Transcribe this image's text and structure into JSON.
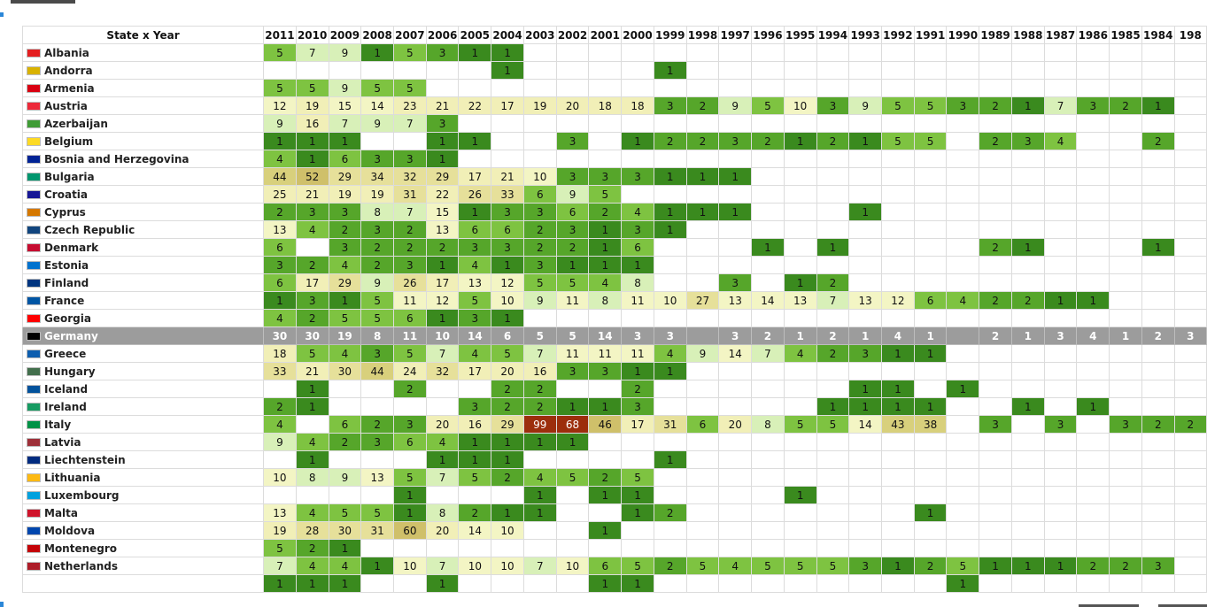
{
  "table": {
    "corner_label": "State x Year",
    "years": [
      "2011",
      "2010",
      "2009",
      "2008",
      "2007",
      "2006",
      "2005",
      "2004",
      "2003",
      "2002",
      "2001",
      "2000",
      "1999",
      "1998",
      "1997",
      "1996",
      "1995",
      "1994",
      "1993",
      "1992",
      "1991",
      "1990",
      "1989",
      "1988",
      "1987",
      "1986",
      "1985",
      "1984",
      "198"
    ],
    "highlight_row": "Germany",
    "rows": [
      {
        "name": "Albania",
        "flag_color": "#e41e20",
        "values": [
          5,
          7,
          9,
          1,
          5,
          3,
          1,
          1,
          null,
          null,
          null,
          null,
          null,
          null,
          null,
          null,
          null,
          null,
          null,
          null,
          null,
          null,
          null,
          null,
          null,
          null,
          null,
          null,
          null
        ]
      },
      {
        "name": "Andorra",
        "flag_color": "#d9b200",
        "values": [
          null,
          null,
          null,
          null,
          null,
          null,
          null,
          1,
          null,
          null,
          null,
          null,
          1,
          null,
          null,
          null,
          null,
          null,
          null,
          null,
          null,
          null,
          null,
          null,
          null,
          null,
          null,
          null,
          null
        ]
      },
      {
        "name": "Armenia",
        "flag_color": "#d90012",
        "values": [
          5,
          5,
          9,
          5,
          5,
          null,
          null,
          null,
          null,
          null,
          null,
          null,
          null,
          null,
          null,
          null,
          null,
          null,
          null,
          null,
          null,
          null,
          null,
          null,
          null,
          null,
          null,
          null,
          null
        ]
      },
      {
        "name": "Austria",
        "flag_color": "#ed2939",
        "values": [
          12,
          19,
          15,
          14,
          23,
          21,
          22,
          17,
          19,
          20,
          18,
          18,
          3,
          2,
          9,
          5,
          10,
          3,
          9,
          5,
          5,
          3,
          2,
          1,
          7,
          3,
          2,
          1,
          null
        ]
      },
      {
        "name": "Azerbaijan",
        "flag_color": "#3f9c35",
        "values": [
          9,
          16,
          7,
          9,
          7,
          3,
          null,
          null,
          null,
          null,
          null,
          null,
          null,
          null,
          null,
          null,
          null,
          null,
          null,
          null,
          null,
          null,
          null,
          null,
          null,
          null,
          null,
          null,
          null
        ]
      },
      {
        "name": "Belgium",
        "flag_color": "#fdda24",
        "values": [
          1,
          1,
          1,
          null,
          null,
          1,
          1,
          null,
          null,
          3,
          null,
          1,
          2,
          2,
          3,
          2,
          1,
          2,
          1,
          5,
          5,
          null,
          2,
          3,
          4,
          null,
          null,
          2,
          null
        ]
      },
      {
        "name": "Bosnia and Herzegovina",
        "flag_color": "#002395",
        "values": [
          4,
          1,
          6,
          3,
          3,
          1,
          null,
          null,
          null,
          null,
          null,
          null,
          null,
          null,
          null,
          null,
          null,
          null,
          null,
          null,
          null,
          null,
          null,
          null,
          null,
          null,
          null,
          null,
          null
        ]
      },
      {
        "name": "Bulgaria",
        "flag_color": "#00966e",
        "values": [
          44,
          52,
          29,
          34,
          32,
          29,
          17,
          21,
          10,
          3,
          3,
          3,
          1,
          1,
          1,
          null,
          null,
          null,
          null,
          null,
          null,
          null,
          null,
          null,
          null,
          null,
          null,
          null,
          null
        ]
      },
      {
        "name": "Croatia",
        "flag_color": "#171796",
        "values": [
          25,
          21,
          19,
          19,
          31,
          22,
          26,
          33,
          6,
          9,
          5,
          null,
          null,
          null,
          null,
          null,
          null,
          null,
          null,
          null,
          null,
          null,
          null,
          null,
          null,
          null,
          null,
          null,
          null
        ]
      },
      {
        "name": "Cyprus",
        "flag_color": "#d57800",
        "values": [
          2,
          3,
          3,
          8,
          7,
          15,
          1,
          3,
          3,
          6,
          2,
          4,
          1,
          1,
          1,
          null,
          null,
          null,
          1,
          null,
          null,
          null,
          null,
          null,
          null,
          null,
          null,
          null,
          null
        ]
      },
      {
        "name": "Czech Republic",
        "flag_color": "#11457e",
        "values": [
          13,
          4,
          2,
          3,
          2,
          13,
          6,
          6,
          2,
          3,
          1,
          3,
          1,
          null,
          null,
          null,
          null,
          null,
          null,
          null,
          null,
          null,
          null,
          null,
          null,
          null,
          null,
          null,
          null
        ]
      },
      {
        "name": "Denmark",
        "flag_color": "#c60c30",
        "values": [
          6,
          null,
          3,
          2,
          2,
          2,
          3,
          3,
          2,
          2,
          1,
          6,
          null,
          null,
          null,
          1,
          null,
          1,
          null,
          null,
          null,
          null,
          2,
          1,
          null,
          null,
          null,
          1,
          null
        ]
      },
      {
        "name": "Estonia",
        "flag_color": "#0072ce",
        "values": [
          3,
          2,
          4,
          2,
          3,
          1,
          4,
          1,
          3,
          1,
          1,
          1,
          null,
          null,
          null,
          null,
          null,
          null,
          null,
          null,
          null,
          null,
          null,
          null,
          null,
          null,
          null,
          null,
          null
        ]
      },
      {
        "name": "Finland",
        "flag_color": "#003580",
        "values": [
          6,
          17,
          29,
          9,
          26,
          17,
          13,
          12,
          5,
          5,
          4,
          8,
          null,
          null,
          3,
          null,
          1,
          2,
          null,
          null,
          null,
          null,
          null,
          null,
          null,
          null,
          null,
          null,
          null
        ]
      },
      {
        "name": "France",
        "flag_color": "#0055a4",
        "values": [
          1,
          3,
          1,
          5,
          11,
          12,
          5,
          10,
          9,
          11,
          8,
          11,
          10,
          27,
          13,
          14,
          13,
          7,
          13,
          12,
          6,
          4,
          2,
          2,
          1,
          1,
          null,
          null,
          null
        ]
      },
      {
        "name": "Georgia",
        "flag_color": "#ff0000",
        "values": [
          4,
          2,
          5,
          5,
          6,
          1,
          3,
          1,
          null,
          null,
          null,
          null,
          null,
          null,
          null,
          null,
          null,
          null,
          null,
          null,
          null,
          null,
          null,
          null,
          null,
          null,
          null,
          null,
          null
        ]
      },
      {
        "name": "Germany",
        "flag_color": "#000000",
        "values": [
          30,
          30,
          19,
          8,
          11,
          10,
          14,
          6,
          5,
          5,
          14,
          3,
          3,
          null,
          3,
          2,
          1,
          2,
          1,
          4,
          1,
          null,
          2,
          1,
          3,
          4,
          1,
          2,
          3
        ]
      },
      {
        "name": "Greece",
        "flag_color": "#0d5eaf",
        "values": [
          18,
          5,
          4,
          3,
          5,
          7,
          4,
          5,
          7,
          11,
          11,
          11,
          4,
          9,
          14,
          7,
          4,
          2,
          3,
          1,
          1,
          null,
          null,
          null,
          null,
          null,
          null,
          null,
          null
        ]
      },
      {
        "name": "Hungary",
        "flag_color": "#436f4d",
        "values": [
          33,
          21,
          30,
          44,
          24,
          32,
          17,
          20,
          16,
          3,
          3,
          1,
          1,
          null,
          null,
          null,
          null,
          null,
          null,
          null,
          null,
          null,
          null,
          null,
          null,
          null,
          null,
          null,
          null
        ]
      },
      {
        "name": "Iceland",
        "flag_color": "#02529c",
        "values": [
          null,
          1,
          null,
          null,
          2,
          null,
          null,
          2,
          2,
          null,
          null,
          2,
          null,
          null,
          null,
          null,
          null,
          null,
          1,
          1,
          null,
          1,
          null,
          null,
          null,
          null,
          null,
          null,
          null
        ]
      },
      {
        "name": "Ireland",
        "flag_color": "#169b62",
        "values": [
          2,
          1,
          null,
          null,
          null,
          null,
          3,
          2,
          2,
          1,
          1,
          3,
          null,
          null,
          null,
          null,
          null,
          1,
          1,
          1,
          1,
          null,
          null,
          1,
          null,
          1,
          null,
          null,
          null
        ]
      },
      {
        "name": "Italy",
        "flag_color": "#009246",
        "values": [
          4,
          null,
          6,
          2,
          3,
          20,
          16,
          29,
          99,
          68,
          46,
          17,
          31,
          6,
          20,
          8,
          5,
          5,
          14,
          43,
          38,
          null,
          3,
          null,
          3,
          null,
          3,
          2,
          2
        ]
      },
      {
        "name": "Latvia",
        "flag_color": "#9e3039",
        "values": [
          9,
          4,
          2,
          3,
          6,
          4,
          1,
          1,
          1,
          1,
          null,
          null,
          null,
          null,
          null,
          null,
          null,
          null,
          null,
          null,
          null,
          null,
          null,
          null,
          null,
          null,
          null,
          null,
          null
        ]
      },
      {
        "name": "Liechtenstein",
        "flag_color": "#002b7f",
        "values": [
          null,
          1,
          null,
          null,
          null,
          1,
          1,
          1,
          null,
          null,
          null,
          null,
          1,
          null,
          null,
          null,
          null,
          null,
          null,
          null,
          null,
          null,
          null,
          null,
          null,
          null,
          null,
          null,
          null
        ]
      },
      {
        "name": "Lithuania",
        "flag_color": "#fdb913",
        "values": [
          10,
          8,
          9,
          13,
          5,
          7,
          5,
          2,
          4,
          5,
          2,
          5,
          null,
          null,
          null,
          null,
          null,
          null,
          null,
          null,
          null,
          null,
          null,
          null,
          null,
          null,
          null,
          null,
          null
        ]
      },
      {
        "name": "Luxembourg",
        "flag_color": "#00a1de",
        "values": [
          null,
          null,
          null,
          null,
          1,
          null,
          null,
          null,
          1,
          null,
          1,
          1,
          null,
          null,
          null,
          null,
          1,
          null,
          null,
          null,
          null,
          null,
          null,
          null,
          null,
          null,
          null,
          null,
          null
        ]
      },
      {
        "name": "Malta",
        "flag_color": "#cf142b",
        "values": [
          13,
          4,
          5,
          5,
          1,
          8,
          2,
          1,
          1,
          null,
          null,
          1,
          2,
          null,
          null,
          null,
          null,
          null,
          null,
          null,
          1,
          null,
          null,
          null,
          null,
          null,
          null,
          null,
          null
        ]
      },
      {
        "name": "Moldova",
        "flag_color": "#0046ae",
        "values": [
          19,
          28,
          30,
          31,
          60,
          20,
          14,
          10,
          null,
          null,
          1,
          null,
          null,
          null,
          null,
          null,
          null,
          null,
          null,
          null,
          null,
          null,
          null,
          null,
          null,
          null,
          null,
          null,
          null
        ]
      },
      {
        "name": "Montenegro",
        "flag_color": "#c40308",
        "values": [
          5,
          2,
          1,
          null,
          null,
          null,
          null,
          null,
          null,
          null,
          null,
          null,
          null,
          null,
          null,
          null,
          null,
          null,
          null,
          null,
          null,
          null,
          null,
          null,
          null,
          null,
          null,
          null,
          null
        ]
      },
      {
        "name": "Netherlands",
        "flag_color": "#ae1c28",
        "values": [
          7,
          4,
          4,
          1,
          10,
          7,
          10,
          10,
          7,
          10,
          6,
          5,
          2,
          5,
          4,
          5,
          5,
          5,
          3,
          1,
          2,
          5,
          1,
          1,
          1,
          2,
          2,
          3,
          null
        ]
      },
      {
        "name": "",
        "flag_color": "#ffffff",
        "values": [
          1,
          1,
          1,
          null,
          null,
          1,
          null,
          null,
          null,
          null,
          1,
          1,
          null,
          null,
          null,
          null,
          null,
          null,
          null,
          null,
          null,
          1,
          null,
          null,
          null,
          null,
          null,
          null,
          null
        ]
      }
    ]
  }
}
